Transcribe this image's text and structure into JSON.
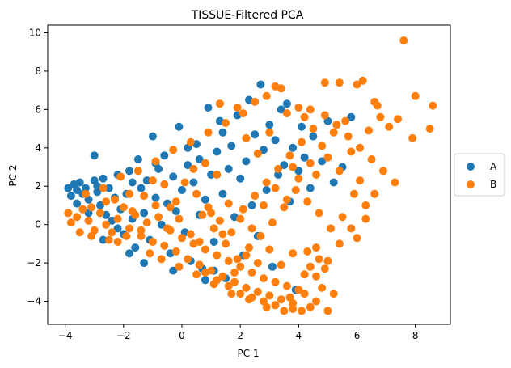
{
  "chart_data": {
    "type": "scatter",
    "title": "TISSUE-Filtered PCA",
    "xlabel": "PC 1",
    "ylabel": "PC 2",
    "xlim": [
      -4.6,
      9.2
    ],
    "ylim": [
      -5.2,
      10.4
    ],
    "xticks": [
      -4,
      -2,
      0,
      2,
      4,
      6,
      8
    ],
    "yticks": [
      -4,
      -2,
      0,
      2,
      4,
      6,
      8,
      10
    ],
    "grid": false,
    "legend_position": "center-right outside",
    "series": [
      {
        "name": "A",
        "color": "#1f77b4",
        "points": [
          [
            -3.9,
            1.9
          ],
          [
            -3.8,
            1.5
          ],
          [
            -3.7,
            2.1
          ],
          [
            -3.6,
            1.8
          ],
          [
            -3.5,
            2.2
          ],
          [
            -3.4,
            1.6
          ],
          [
            -3.3,
            1.9
          ],
          [
            -3.2,
            1.3
          ],
          [
            -3.0,
            2.3
          ],
          [
            -2.9,
            1.7
          ],
          [
            -2.8,
            1.0
          ],
          [
            -2.7,
            2.4
          ],
          [
            -2.6,
            0.5
          ],
          [
            -2.5,
            1.9
          ],
          [
            -2.4,
            0.2
          ],
          [
            -2.3,
            1.4
          ],
          [
            -2.2,
            2.6
          ],
          [
            -2.1,
            0.8
          ],
          [
            -2.0,
            -0.5
          ],
          [
            -1.9,
            1.6
          ],
          [
            -1.8,
            2.8
          ],
          [
            -1.7,
            0.3
          ],
          [
            -1.6,
            -1.2
          ],
          [
            -1.5,
            3.4
          ],
          [
            -1.4,
            1.9
          ],
          [
            -1.3,
            0.6
          ],
          [
            -1.2,
            2.3
          ],
          [
            -1.1,
            -0.8
          ],
          [
            -1.0,
            4.6
          ],
          [
            -0.9,
            1.4
          ],
          [
            -0.8,
            2.9
          ],
          [
            -0.7,
            0.0
          ],
          [
            -0.6,
            3.6
          ],
          [
            -0.5,
            1.1
          ],
          [
            -0.4,
            -1.5
          ],
          [
            -0.3,
            2.5
          ],
          [
            -0.2,
            0.7
          ],
          [
            -0.1,
            5.1
          ],
          [
            0.0,
            1.8
          ],
          [
            0.1,
            -0.4
          ],
          [
            0.2,
            3.1
          ],
          [
            0.3,
            -1.9
          ],
          [
            0.4,
            2.2
          ],
          [
            0.5,
            4.2
          ],
          [
            0.6,
            0.5
          ],
          [
            0.7,
            -2.3
          ],
          [
            0.8,
            1.3
          ],
          [
            0.9,
            6.1
          ],
          [
            1.0,
            2.6
          ],
          [
            1.1,
            -0.9
          ],
          [
            1.2,
            3.8
          ],
          [
            1.3,
            5.4
          ],
          [
            1.4,
            1.6
          ],
          [
            1.5,
            -2.8
          ],
          [
            1.6,
            2.9
          ],
          [
            1.7,
            4.1
          ],
          [
            1.8,
            0.4
          ],
          [
            1.9,
            5.7
          ],
          [
            2.0,
            2.4
          ],
          [
            2.1,
            -1.6
          ],
          [
            2.2,
            3.3
          ],
          [
            2.3,
            6.5
          ],
          [
            2.4,
            1.0
          ],
          [
            2.5,
            4.7
          ],
          [
            2.6,
            -0.6
          ],
          [
            2.7,
            7.3
          ],
          [
            2.8,
            3.9
          ],
          [
            2.9,
            1.8
          ],
          [
            3.0,
            5.2
          ],
          [
            3.1,
            -2.2
          ],
          [
            3.2,
            4.4
          ],
          [
            3.3,
            2.6
          ],
          [
            3.4,
            6.0
          ],
          [
            3.5,
            3.1
          ],
          [
            3.6,
            6.3
          ],
          [
            3.7,
            1.2
          ],
          [
            3.8,
            4.0
          ],
          [
            3.9,
            -3.4
          ],
          [
            4.0,
            2.8
          ],
          [
            4.1,
            5.1
          ],
          [
            4.2,
            3.5
          ],
          [
            4.4,
            1.9
          ],
          [
            4.5,
            4.6
          ],
          [
            4.8,
            3.3
          ],
          [
            5.0,
            5.4
          ],
          [
            5.2,
            2.2
          ],
          [
            5.5,
            3.0
          ],
          [
            5.8,
            5.6
          ],
          [
            -3.0,
            3.6
          ],
          [
            -1.8,
            -1.5
          ],
          [
            -1.3,
            -2.0
          ],
          [
            -0.3,
            -2.4
          ],
          [
            0.8,
            -2.9
          ],
          [
            -2.2,
            -0.2
          ],
          [
            -3.2,
            0.6
          ],
          [
            -2.7,
            -0.8
          ],
          [
            -1.7,
            2.2
          ],
          [
            -0.9,
            3.2
          ],
          [
            0.2,
            4.0
          ],
          [
            0.6,
            3.4
          ],
          [
            1.1,
            -2.4
          ],
          [
            1.4,
            4.8
          ],
          [
            -3.6,
            1.1
          ],
          [
            -2.9,
            2.0
          ]
        ]
      },
      {
        "name": "B",
        "color": "#ff7f0e",
        "points": [
          [
            -3.8,
            0.1
          ],
          [
            -3.6,
            0.4
          ],
          [
            -3.4,
            0.8
          ],
          [
            -3.2,
            0.2
          ],
          [
            -3.0,
            -0.3
          ],
          [
            -2.8,
            0.6
          ],
          [
            -2.6,
            1.2
          ],
          [
            -2.4,
            -0.4
          ],
          [
            -2.2,
            0.3
          ],
          [
            -2.0,
            0.9
          ],
          [
            -1.8,
            -0.2
          ],
          [
            -1.6,
            0.5
          ],
          [
            -1.4,
            -0.6
          ],
          [
            -1.2,
            0.1
          ],
          [
            -1.0,
            -0.9
          ],
          [
            -0.8,
            0.4
          ],
          [
            -0.6,
            -1.1
          ],
          [
            -0.4,
            -0.3
          ],
          [
            -0.2,
            -1.4
          ],
          [
            0.0,
            -0.7
          ],
          [
            0.2,
            -1.8
          ],
          [
            0.4,
            -1.0
          ],
          [
            0.6,
            -2.1
          ],
          [
            0.8,
            -1.3
          ],
          [
            1.0,
            -2.4
          ],
          [
            1.2,
            -1.6
          ],
          [
            1.4,
            -2.7
          ],
          [
            1.6,
            -1.9
          ],
          [
            1.8,
            -3.0
          ],
          [
            2.0,
            -2.2
          ],
          [
            2.2,
            -3.3
          ],
          [
            2.4,
            -2.5
          ],
          [
            2.6,
            -3.5
          ],
          [
            2.8,
            -2.8
          ],
          [
            3.0,
            -3.7
          ],
          [
            3.2,
            -3.0
          ],
          [
            3.4,
            -3.9
          ],
          [
            3.6,
            -3.2
          ],
          [
            3.8,
            -4.1
          ],
          [
            4.0,
            -3.4
          ],
          [
            4.2,
            -3.6
          ],
          [
            4.4,
            -2.2
          ],
          [
            4.6,
            -2.7
          ],
          [
            4.8,
            -3.3
          ],
          [
            5.0,
            -4.5
          ],
          [
            4.9,
            -2.3
          ],
          [
            4.7,
            -1.8
          ],
          [
            4.3,
            -1.4
          ],
          [
            -3.3,
            1.6
          ],
          [
            -2.7,
            1.9
          ],
          [
            -2.1,
            2.5
          ],
          [
            -1.5,
            2.8
          ],
          [
            -0.9,
            3.3
          ],
          [
            -0.3,
            3.9
          ],
          [
            0.3,
            4.3
          ],
          [
            0.9,
            4.8
          ],
          [
            1.5,
            5.3
          ],
          [
            2.1,
            5.8
          ],
          [
            2.5,
            6.4
          ],
          [
            1.9,
            6.1
          ],
          [
            3.2,
            7.2
          ],
          [
            3.4,
            7.1
          ],
          [
            2.9,
            6.7
          ],
          [
            1.3,
            6.3
          ],
          [
            0.1,
            2.2
          ],
          [
            0.5,
            1.6
          ],
          [
            0.9,
            0.9
          ],
          [
            1.3,
            0.2
          ],
          [
            1.7,
            -0.4
          ],
          [
            2.1,
            0.8
          ],
          [
            2.5,
            1.5
          ],
          [
            2.9,
            2.2
          ],
          [
            3.3,
            2.9
          ],
          [
            3.7,
            3.6
          ],
          [
            4.1,
            4.3
          ],
          [
            4.5,
            5.0
          ],
          [
            4.9,
            5.7
          ],
          [
            5.3,
            5.2
          ],
          [
            5.7,
            4.6
          ],
          [
            6.1,
            4.0
          ],
          [
            6.5,
            3.4
          ],
          [
            6.9,
            2.8
          ],
          [
            7.3,
            2.2
          ],
          [
            5.9,
            1.6
          ],
          [
            6.3,
            1.0
          ],
          [
            5.5,
            0.4
          ],
          [
            5.1,
            -0.2
          ],
          [
            4.7,
            0.6
          ],
          [
            4.3,
            1.2
          ],
          [
            3.9,
            1.8
          ],
          [
            3.5,
            0.9
          ],
          [
            3.1,
            0.1
          ],
          [
            2.7,
            -0.6
          ],
          [
            2.3,
            -1.2
          ],
          [
            1.9,
            -1.8
          ],
          [
            1.5,
            -1.0
          ],
          [
            1.1,
            -0.2
          ],
          [
            0.7,
            0.5
          ],
          [
            0.3,
            -0.5
          ],
          [
            -0.1,
            0.3
          ],
          [
            -0.5,
            -0.2
          ],
          [
            -0.9,
            1.0
          ],
          [
            -1.3,
            1.5
          ],
          [
            -1.7,
            0.7
          ],
          [
            6.2,
            7.5
          ],
          [
            6.0,
            7.3
          ],
          [
            6.6,
            6.4
          ],
          [
            6.7,
            6.2
          ],
          [
            4.9,
            7.4
          ],
          [
            5.4,
            7.4
          ],
          [
            7.1,
            5.1
          ],
          [
            7.4,
            5.5
          ],
          [
            7.6,
            9.6
          ],
          [
            8.0,
            6.7
          ],
          [
            8.6,
            6.2
          ],
          [
            7.9,
            4.5
          ],
          [
            8.5,
            5.0
          ],
          [
            6.4,
            4.9
          ],
          [
            6.8,
            5.6
          ],
          [
            5.6,
            5.4
          ],
          [
            6.1,
            2.3
          ],
          [
            6.6,
            1.6
          ],
          [
            6.3,
            0.3
          ],
          [
            6.0,
            -0.7
          ],
          [
            5.8,
            -0.2
          ],
          [
            5.2,
            -3.6
          ],
          [
            4.6,
            -4.0
          ],
          [
            4.4,
            -4.3
          ],
          [
            3.8,
            -4.4
          ],
          [
            3.2,
            -4.2
          ],
          [
            2.8,
            -4.0
          ],
          [
            2.4,
            -3.8
          ],
          [
            2.0,
            -3.6
          ],
          [
            1.6,
            -3.2
          ],
          [
            1.2,
            -2.9
          ],
          [
            0.8,
            -2.5
          ],
          [
            -3.9,
            0.6
          ],
          [
            -3.5,
            -0.4
          ],
          [
            -3.1,
            0.9
          ],
          [
            -2.5,
            -0.8
          ],
          [
            -1.9,
            -0.6
          ],
          [
            -1.1,
            -1.5
          ],
          [
            -0.7,
            -1.8
          ],
          [
            -0.1,
            -2.2
          ],
          [
            0.5,
            -2.6
          ],
          [
            1.1,
            -3.1
          ],
          [
            1.7,
            -3.6
          ],
          [
            2.3,
            -3.9
          ],
          [
            2.9,
            -4.3
          ],
          [
            3.5,
            -4.5
          ],
          [
            4.1,
            -4.5
          ],
          [
            3.7,
            -3.8
          ],
          [
            2.2,
            4.5
          ],
          [
            2.6,
            3.7
          ],
          [
            3.0,
            4.8
          ],
          [
            3.6,
            5.8
          ],
          [
            4.0,
            6.1
          ],
          [
            4.4,
            6.0
          ],
          [
            4.2,
            5.6
          ],
          [
            3.8,
            3.0
          ],
          [
            4.6,
            2.6
          ],
          [
            5.0,
            3.5
          ],
          [
            5.4,
            2.8
          ],
          [
            5.8,
            3.8
          ],
          [
            5.2,
            4.8
          ],
          [
            4.8,
            4.1
          ],
          [
            4.4,
            3.2
          ],
          [
            4.0,
            2.4
          ],
          [
            3.6,
            1.3
          ],
          [
            3.2,
            1.9
          ],
          [
            2.8,
            1.0
          ],
          [
            2.4,
            -0.2
          ],
          [
            2.0,
            0.3
          ],
          [
            1.6,
            1.1
          ],
          [
            1.2,
            2.6
          ],
          [
            0.8,
            3.2
          ],
          [
            0.4,
            2.9
          ],
          [
            -0.2,
            1.2
          ],
          [
            -0.6,
            2.1
          ],
          [
            -1.0,
            2.3
          ],
          [
            -1.4,
            -0.3
          ],
          [
            -1.8,
            1.6
          ],
          [
            -2.2,
            -0.9
          ],
          [
            -2.6,
            0.0
          ],
          [
            -3.1,
            -0.6
          ],
          [
            -2.3,
            1.3
          ],
          [
            -0.4,
            0.9
          ],
          [
            0.6,
            -0.9
          ],
          [
            1.0,
            0.6
          ],
          [
            1.4,
            -0.5
          ],
          [
            1.8,
            -2.5
          ],
          [
            2.2,
            -1.6
          ],
          [
            2.6,
            -2.0
          ],
          [
            3.0,
            -1.3
          ],
          [
            3.4,
            -2.1
          ],
          [
            3.8,
            -1.5
          ],
          [
            4.2,
            -2.6
          ],
          [
            4.6,
            -1.2
          ],
          [
            5.0,
            -1.9
          ],
          [
            5.4,
            -1.0
          ]
        ]
      }
    ]
  }
}
